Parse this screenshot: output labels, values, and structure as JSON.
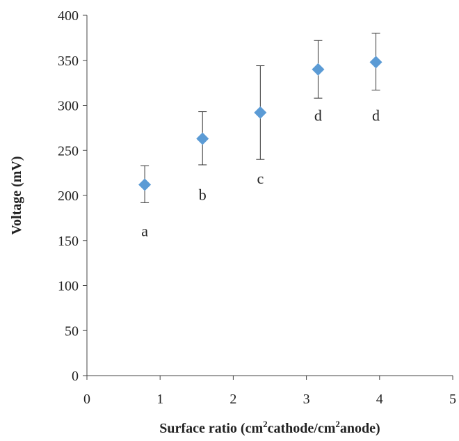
{
  "chart_data": {
    "type": "scatter",
    "title": "",
    "xlabel": {
      "before": "Surface ratio (cm",
      "sup1": "2",
      "middle": "cathode/cm",
      "sup2": "2",
      "after": "anode)"
    },
    "ylabel": "Voltage (mV)",
    "xlim": [
      0,
      5
    ],
    "ylim": [
      0,
      400
    ],
    "x_ticks": [
      "0",
      "1",
      "2",
      "3",
      "4",
      "5"
    ],
    "y_ticks": [
      "0",
      "50",
      "100",
      "150",
      "200",
      "250",
      "300",
      "350",
      "400"
    ],
    "grid": false,
    "legend": "none",
    "marker": "diamond",
    "color": "#5B9BD5",
    "points": [
      {
        "x": 0.79,
        "y": 212,
        "err_low": 192,
        "err_high": 233,
        "label": "a",
        "label_y": 155
      },
      {
        "x": 1.58,
        "y": 263,
        "err_low": 234,
        "err_high": 293,
        "label": "b",
        "label_y": 195
      },
      {
        "x": 2.37,
        "y": 292,
        "err_low": 240,
        "err_high": 344,
        "label": "c",
        "label_y": 213
      },
      {
        "x": 3.16,
        "y": 340,
        "err_low": 308,
        "err_high": 372,
        "label": "d",
        "label_y": 283
      },
      {
        "x": 3.95,
        "y": 348,
        "err_low": 317,
        "err_high": 380,
        "label": "d",
        "label_y": 283
      }
    ]
  }
}
